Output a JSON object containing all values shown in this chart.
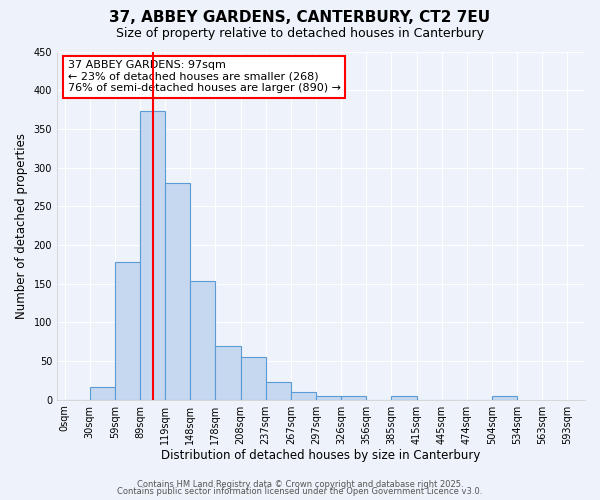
{
  "title": "37, ABBEY GARDENS, CANTERBURY, CT2 7EU",
  "subtitle": "Size of property relative to detached houses in Canterbury",
  "xlabel": "Distribution of detached houses by size in Canterbury",
  "ylabel": "Number of detached properties",
  "bar_values": [
    0,
    17,
    178,
    373,
    280,
    153,
    70,
    55,
    23,
    10,
    5,
    5,
    0,
    5,
    0,
    0,
    0,
    5
  ],
  "tick_labels": [
    "0sqm",
    "30sqm",
    "59sqm",
    "89sqm",
    "119sqm",
    "148sqm",
    "178sqm",
    "208sqm",
    "237sqm",
    "267sqm",
    "297sqm",
    "326sqm",
    "356sqm",
    "385sqm",
    "415sqm",
    "445sqm",
    "474sqm",
    "504sqm",
    "534sqm",
    "563sqm",
    "593sqm"
  ],
  "ylim": [
    0,
    450
  ],
  "yticks": [
    0,
    50,
    100,
    150,
    200,
    250,
    300,
    350,
    400,
    450
  ],
  "bar_color": "#c5d8f0",
  "bar_edge_color": "#5b9bd5",
  "vline_x": 3.5,
  "vline_color": "red",
  "annotation_line1": "37 ABBEY GARDENS: 97sqm",
  "annotation_line2": "← 23% of detached houses are smaller (268)",
  "annotation_line3": "76% of semi-detached houses are larger (890) →",
  "footer_line1": "Contains HM Land Registry data © Crown copyright and database right 2025.",
  "footer_line2": "Contains public sector information licensed under the Open Government Licence v3.0.",
  "background_color": "#eef2fa",
  "grid_color": "#ffffff",
  "title_fontsize": 11,
  "subtitle_fontsize": 9,
  "axis_label_fontsize": 8.5,
  "tick_fontsize": 7,
  "annotation_fontsize": 8,
  "footer_fontsize": 6
}
